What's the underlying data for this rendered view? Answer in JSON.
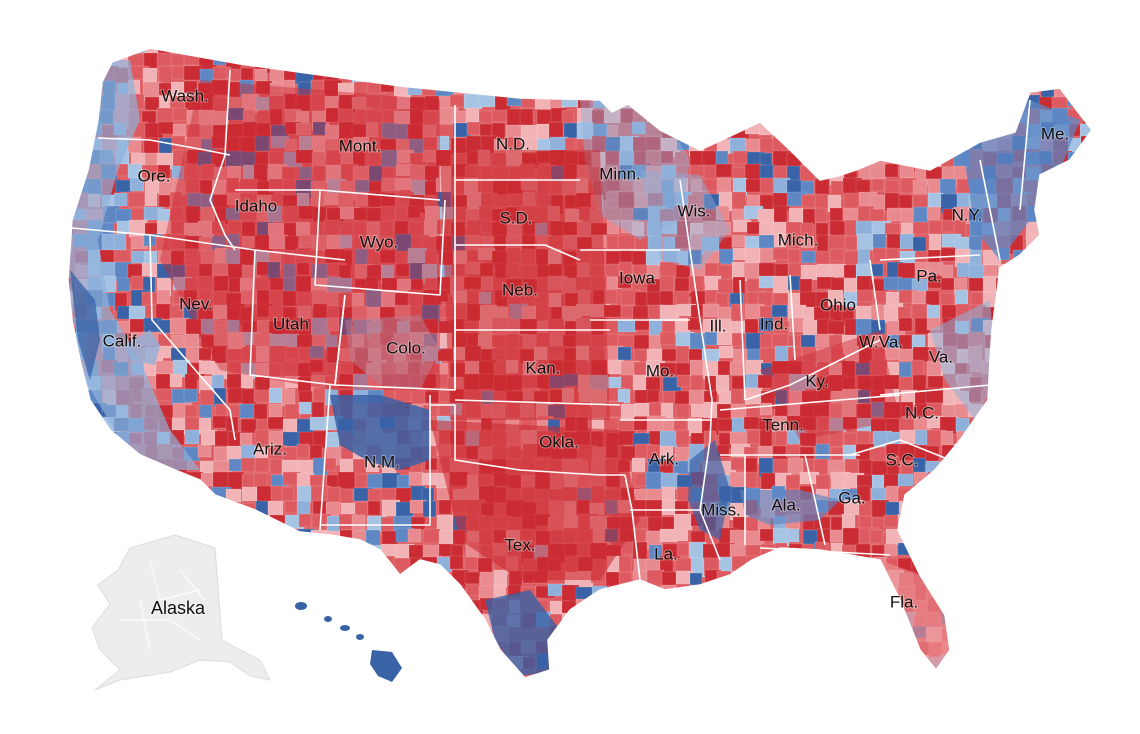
{
  "colors": {
    "rep_strong": "#cb2b32",
    "rep_medium": "#dd5b60",
    "rep_light": "#e98a8f",
    "rep_faint": "#f2b3b6",
    "dem_faint": "#a6c3e3",
    "dem_light": "#8fb0da",
    "dem_medium": "#5e87c4",
    "dem_strong": "#3a62a6",
    "no_data": "#ededed"
  },
  "labels": {
    "wash": "Wash.",
    "mont": "Mont.",
    "nd": "N.D.",
    "minn": "Minn.",
    "me": "Me.",
    "ore": "Ore.",
    "idaho": "Idaho",
    "sd": "S.D.",
    "wis": "Wis.",
    "ny": "N.Y.",
    "wyo": "Wyo.",
    "mich": "Mich.",
    "iowa": "Iowa",
    "neb": "Neb.",
    "pa": "Pa.",
    "nev": "Nev.",
    "utah": "Utah",
    "ohio": "Ohio",
    "ill": "Ill.",
    "ind": "Ind.",
    "calif": "Calif.",
    "colo": "Colo.",
    "wva": "W.Va.",
    "va": "Va.",
    "kan": "Kan.",
    "mo": "Mo.",
    "ky": "Ky.",
    "nc": "N.C.",
    "tenn": "Tenn.",
    "ariz": "Ariz.",
    "okla": "Okla.",
    "nm": "N.M.",
    "ark": "Ark.",
    "sc": "S.C.",
    "ga": "Ga.",
    "ala": "Ala.",
    "miss": "Miss.",
    "tex": "Tex.",
    "la": "La.",
    "alaska": "Alaska",
    "fla": "Fla."
  }
}
